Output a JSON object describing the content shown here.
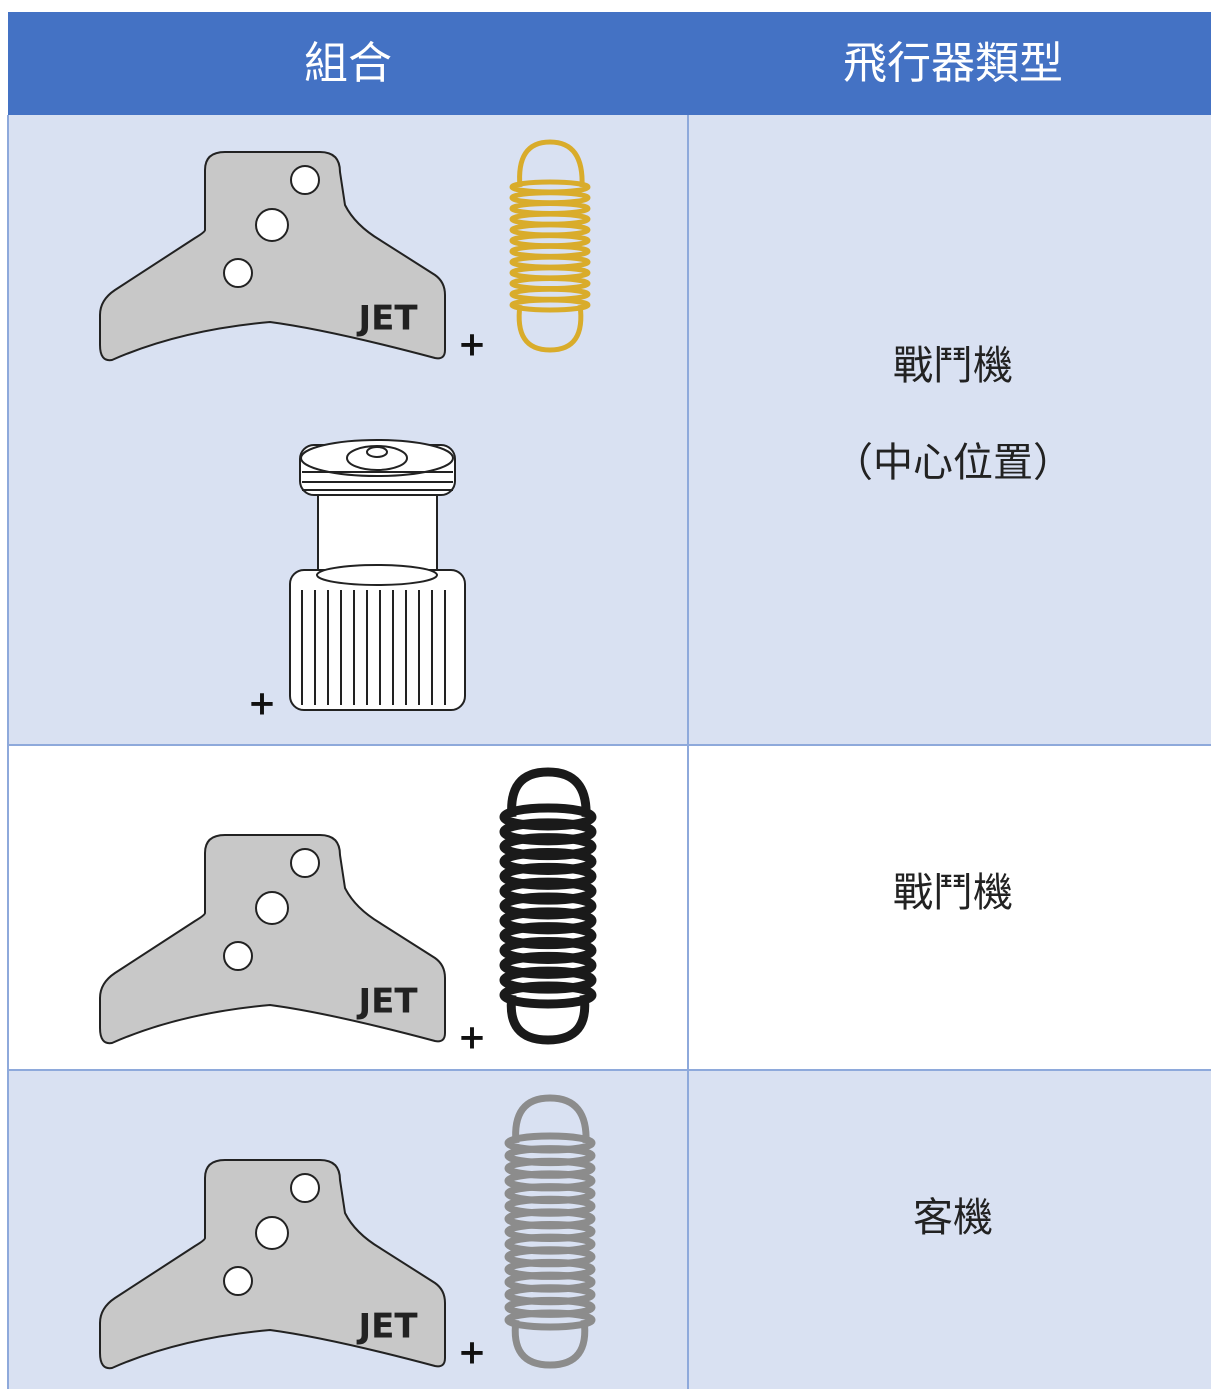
{
  "table": {
    "header": [
      "組合",
      "飛行器類型"
    ],
    "rows": [
      {
        "combination": {
          "wing_label": "JET",
          "plus_signs": [
            "+",
            "+"
          ]
        },
        "type": [
          "戰鬥機",
          "（中心位置）"
        ]
      },
      {
        "combination": {
          "wing_label": "JET",
          "plus_signs": [
            "+"
          ]
        },
        "type": [
          "戰鬥機"
        ]
      },
      {
        "combination": {
          "wing_label": "JET",
          "plus_signs": [
            "+"
          ]
        },
        "type": [
          "客機"
        ]
      }
    ]
  }
}
